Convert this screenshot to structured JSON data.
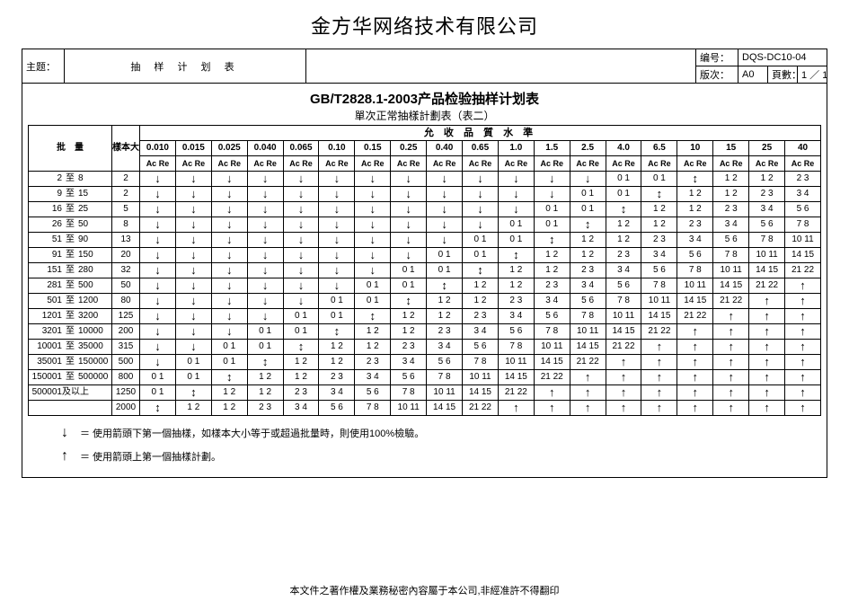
{
  "company": "金方华网络技术有限公司",
  "header": {
    "subject_label": "主题：",
    "subject": "抽 样 计 划 表",
    "doc_no_label": "编号：",
    "doc_no": "DQS-DC10-04",
    "rev_label": "版次：",
    "rev": "A0",
    "page_label": "頁數：",
    "page": "1 ／ 1"
  },
  "title_main": "GB/T2828.1-2003产品检验抽样计划表",
  "title_sub": "單次正常抽樣計劃表（表二）",
  "col_lot": "批　量",
  "col_sample": "樣本大小",
  "col_aql_header": "允 收 品 質 水 準",
  "acre": "Ac Re",
  "aql_levels": [
    "0.010",
    "0.015",
    "0.025",
    "0.040",
    "0.065",
    "0.10",
    "0.15",
    "0.25",
    "0.40",
    "0.65",
    "1.0",
    "1.5",
    "2.5",
    "4.0",
    "6.5",
    "10",
    "15",
    "25",
    "40"
  ],
  "lot_rows": [
    {
      "a": "2",
      "m": "至",
      "b": "8",
      "ss": "2"
    },
    {
      "a": "9",
      "m": "至",
      "b": "15",
      "ss": "2"
    },
    {
      "a": "16",
      "m": "至",
      "b": "25",
      "ss": "5"
    },
    {
      "a": "26",
      "m": "至",
      "b": "50",
      "ss": "8"
    },
    {
      "a": "51",
      "m": "至",
      "b": "90",
      "ss": "13"
    },
    {
      "a": "91",
      "m": "至",
      "b": "150",
      "ss": "20"
    },
    {
      "a": "151",
      "m": "至",
      "b": "280",
      "ss": "32"
    },
    {
      "a": "281",
      "m": "至",
      "b": "500",
      "ss": "50"
    },
    {
      "a": "501",
      "m": "至",
      "b": "1200",
      "ss": "80"
    },
    {
      "a": "1201",
      "m": "至",
      "b": "3200",
      "ss": "125"
    },
    {
      "a": "3201",
      "m": "至",
      "b": "10000",
      "ss": "200"
    },
    {
      "a": "10001",
      "m": "至",
      "b": "35000",
      "ss": "315"
    },
    {
      "a": "35001",
      "m": "至",
      "b": "150000",
      "ss": "500"
    },
    {
      "a": "150001",
      "m": "至",
      "b": "500000",
      "ss": "800"
    },
    {
      "a": "500001",
      "m": "及以上",
      "b": "",
      "ss": "1250"
    },
    {
      "a": "",
      "m": "",
      "b": "",
      "ss": "2000"
    }
  ],
  "diag_values": [
    "0 1",
    "0 1",
    "",
    "1 2",
    "1 2",
    "2 3",
    "3 4",
    "5 6",
    "7 8",
    "10 11",
    "14 15",
    "21 22"
  ],
  "top_right_tail": {
    "15": [
      "",
      "1 2",
      "2 3",
      "3 4",
      "5 6",
      "7 8",
      "10 11",
      "14 15",
      "21 22"
    ],
    "25": [
      "1 2",
      "2 3",
      "3 4",
      "5 6",
      "7 8",
      "10 11",
      "14 15",
      "21 22",
      ""
    ],
    "40": [
      "2 3",
      "3 4",
      "5 6",
      "7 8",
      "10 11",
      "14 15",
      "21 22",
      "",
      ""
    ]
  },
  "legend": {
    "down_sym": "↓",
    "down_txt": "＝ 使用箭頭下第一個抽樣，如樣本大小等于或超過批量時，則使用100%檢驗。",
    "up_sym": "↑",
    "up_txt": "＝ 使用箭頭上第一個抽樣計劃。"
  },
  "footer": "本文件之著作權及業務秘密內容屬于本公司,非經准許不得翻印",
  "glyph_down": "↓",
  "glyph_up": "↑",
  "glyph_updown": "↕"
}
